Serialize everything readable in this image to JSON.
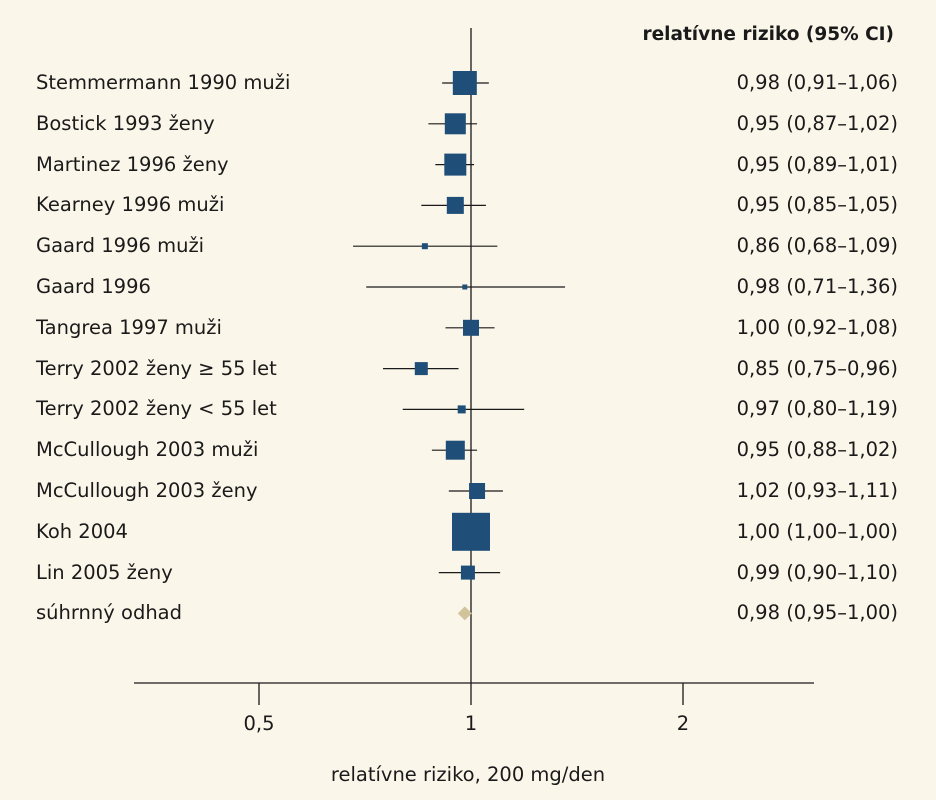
{
  "chart_data": {
    "type": "forest",
    "header": "relatívne riziko (95% CI)",
    "xlabel": "relatívne riziko, 200 mg/den",
    "x_scale": "log",
    "reference_line": 1,
    "xticks": [
      {
        "value": 0.5,
        "label": "0,5"
      },
      {
        "value": 1,
        "label": "1"
      },
      {
        "value": 2,
        "label": "2"
      }
    ],
    "colors": {
      "study": "#1f4e79",
      "summary": "#d2c49a",
      "background": "#fbf6ea"
    },
    "studies": [
      {
        "label": "Stemmermann 1990 muži",
        "rr": 0.98,
        "lo": 0.91,
        "hi": 1.06,
        "ci_text": "0,98 (0,91–1,06)",
        "marker": "study"
      },
      {
        "label": "Bostick 1993 ženy",
        "rr": 0.95,
        "lo": 0.87,
        "hi": 1.02,
        "ci_text": "0,95 (0,87–1,02)",
        "marker": "study"
      },
      {
        "label": "Martinez 1996 ženy",
        "rr": 0.95,
        "lo": 0.89,
        "hi": 1.01,
        "ci_text": "0,95 (0,89–1,01)",
        "marker": "study"
      },
      {
        "label": "Kearney 1996 muži",
        "rr": 0.95,
        "lo": 0.85,
        "hi": 1.05,
        "ci_text": "0,95 (0,85–1,05)",
        "marker": "study"
      },
      {
        "label": "Gaard 1996 muži",
        "rr": 0.86,
        "lo": 0.68,
        "hi": 1.09,
        "ci_text": "0,86 (0,68–1,09)",
        "marker": "study"
      },
      {
        "label": "Gaard 1996",
        "rr": 0.98,
        "lo": 0.71,
        "hi": 1.36,
        "ci_text": "0,98 (0,71–1,36)",
        "marker": "study"
      },
      {
        "label": "Tangrea 1997 muži",
        "rr": 1.0,
        "lo": 0.92,
        "hi": 1.08,
        "ci_text": "1,00 (0,92–1,08)",
        "marker": "study"
      },
      {
        "label": "Terry 2002 ženy ≥ 55 let",
        "rr": 0.85,
        "lo": 0.75,
        "hi": 0.96,
        "ci_text": "0,85 (0,75–0,96)",
        "marker": "study"
      },
      {
        "label": "Terry 2002 ženy < 55 let",
        "rr": 0.97,
        "lo": 0.8,
        "hi": 1.19,
        "ci_text": "0,97 (0,80–1,19)",
        "marker": "study"
      },
      {
        "label": "McCullough 2003 muži",
        "rr": 0.95,
        "lo": 0.88,
        "hi": 1.02,
        "ci_text": "0,95 (0,88–1,02)",
        "marker": "study"
      },
      {
        "label": "McCullough 2003 ženy",
        "rr": 1.02,
        "lo": 0.93,
        "hi": 1.11,
        "ci_text": "1,02 (0,93–1,11)",
        "marker": "study"
      },
      {
        "label": "Koh 2004",
        "rr": 1.0,
        "lo": 1.0,
        "hi": 1.0,
        "ci_text": "1,00 (1,00–1,00)",
        "marker": "study"
      },
      {
        "label": "Lin 2005 ženy",
        "rr": 0.99,
        "lo": 0.9,
        "hi": 1.1,
        "ci_text": "0,99 (0,90–1,10)",
        "marker": "study"
      },
      {
        "label": "súhrnný odhad",
        "rr": 0.98,
        "lo": 0.95,
        "hi": 1.0,
        "ci_text": "0,98 (0,95–1,00)",
        "marker": "summary"
      }
    ]
  }
}
